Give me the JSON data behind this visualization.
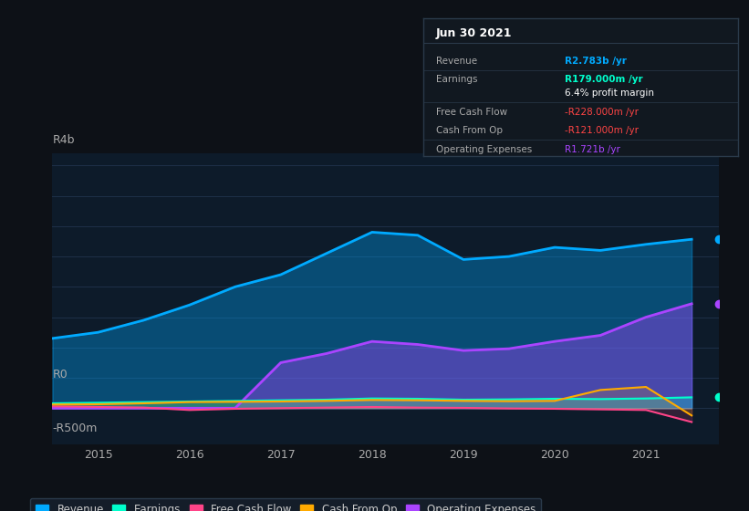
{
  "background_color": "#0d1117",
  "plot_bg_color": "#0d1b2a",
  "y_label_top": "R4b",
  "y_label_mid": "R0",
  "y_label_bot": "-R500m",
  "x_ticks": [
    2015,
    2016,
    2017,
    2018,
    2019,
    2020,
    2021
  ],
  "x_range": [
    2014.5,
    2021.8
  ],
  "y_range": [
    -600000000,
    4200000000
  ],
  "gridline_color": "#1e3048",
  "gridline_positions": [
    0,
    500000000,
    1000000000,
    1500000000,
    2000000000,
    2500000000,
    3000000000,
    3500000000,
    4000000000
  ],
  "revenue": {
    "color": "#00aaff",
    "fill_color": "#00aaff",
    "label": "Revenue",
    "x": [
      2014.5,
      2015.0,
      2015.5,
      2016.0,
      2016.5,
      2017.0,
      2017.5,
      2018.0,
      2018.5,
      2019.0,
      2019.5,
      2020.0,
      2020.5,
      2021.0,
      2021.5
    ],
    "y": [
      1150000000,
      1250000000,
      1450000000,
      1700000000,
      2000000000,
      2200000000,
      2550000000,
      2900000000,
      2850000000,
      2450000000,
      2500000000,
      2650000000,
      2600000000,
      2700000000,
      2783000000
    ]
  },
  "earnings": {
    "color": "#00ffcc",
    "fill_color": "#00ffcc",
    "label": "Earnings",
    "x": [
      2014.5,
      2015.0,
      2015.5,
      2016.0,
      2016.5,
      2017.0,
      2017.5,
      2018.0,
      2018.5,
      2019.0,
      2019.5,
      2020.0,
      2020.5,
      2021.0,
      2021.5
    ],
    "y": [
      80000000,
      90000000,
      100000000,
      110000000,
      120000000,
      130000000,
      140000000,
      160000000,
      155000000,
      140000000,
      145000000,
      155000000,
      150000000,
      160000000,
      179000000
    ]
  },
  "free_cash_flow": {
    "color": "#ff4488",
    "fill_color": "#ff4488",
    "label": "Free Cash Flow",
    "x": [
      2014.5,
      2015.0,
      2015.5,
      2016.0,
      2016.5,
      2017.0,
      2017.5,
      2018.0,
      2018.5,
      2019.0,
      2019.5,
      2020.0,
      2020.5,
      2021.0,
      2021.5
    ],
    "y": [
      30000000,
      20000000,
      10000000,
      -30000000,
      -10000000,
      0,
      10000000,
      20000000,
      10000000,
      5000000,
      -5000000,
      -10000000,
      -20000000,
      -30000000,
      -228000000
    ]
  },
  "cash_from_op": {
    "color": "#ffaa00",
    "fill_color": "#ffaa00",
    "label": "Cash From Op",
    "x": [
      2014.5,
      2015.0,
      2015.5,
      2016.0,
      2016.5,
      2017.0,
      2017.5,
      2018.0,
      2018.5,
      2019.0,
      2019.5,
      2020.0,
      2020.5,
      2021.0,
      2021.5
    ],
    "y": [
      60000000,
      65000000,
      80000000,
      100000000,
      105000000,
      110000000,
      120000000,
      135000000,
      130000000,
      120000000,
      115000000,
      120000000,
      300000000,
      350000000,
      -121000000
    ]
  },
  "operating_expenses": {
    "color": "#aa44ff",
    "fill_color": "#aa44ff",
    "label": "Operating Expenses",
    "x": [
      2014.5,
      2015.0,
      2015.5,
      2016.0,
      2016.5,
      2017.0,
      2017.5,
      2018.0,
      2018.5,
      2019.0,
      2019.5,
      2020.0,
      2020.5,
      2021.0,
      2021.5
    ],
    "y": [
      0,
      0,
      0,
      0,
      0,
      750000000,
      900000000,
      1100000000,
      1050000000,
      950000000,
      980000000,
      1100000000,
      1200000000,
      1500000000,
      1721000000
    ]
  },
  "tooltip_box": {
    "bg_color": "#111820",
    "border_color": "#2a3a4a",
    "title": "Jun 30 2021",
    "rows": [
      {
        "label": "Revenue",
        "value": "R2.783b /yr",
        "value_color": "#00aaff"
      },
      {
        "label": "Earnings",
        "value": "R179.000m /yr",
        "value_color": "#00ffcc"
      },
      {
        "label": "",
        "value": "6.4% profit margin",
        "value_color": "#ffffff"
      },
      {
        "label": "Free Cash Flow",
        "value": "-R228.000m /yr",
        "value_color": "#ff4444"
      },
      {
        "label": "Cash From Op",
        "value": "-R121.000m /yr",
        "value_color": "#ff4444"
      },
      {
        "label": "Operating Expenses",
        "value": "R1.721b /yr",
        "value_color": "#aa44ff"
      }
    ]
  },
  "legend_items": [
    {
      "label": "Revenue",
      "color": "#00aaff"
    },
    {
      "label": "Earnings",
      "color": "#00ffcc"
    },
    {
      "label": "Free Cash Flow",
      "color": "#ff4488"
    },
    {
      "label": "Cash From Op",
      "color": "#ffaa00"
    },
    {
      "label": "Operating Expenses",
      "color": "#aa44ff"
    }
  ]
}
